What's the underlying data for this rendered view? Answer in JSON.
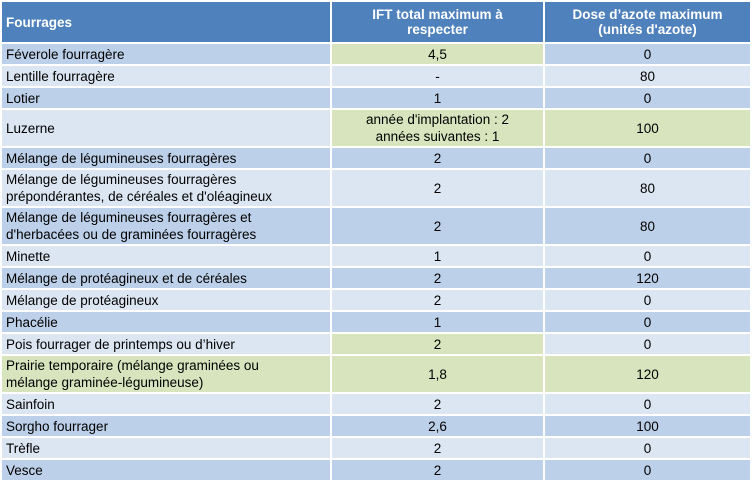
{
  "header": {
    "col1": "Fourrages",
    "col2_line1": "IFT total maximum  à",
    "col2_line2": "respecter",
    "col3_line1": "Dose d’azote maximum",
    "col3_line2": "(unités d'azote)"
  },
  "colors": {
    "header_bg": "#4f81bd",
    "row_dark": "#bdd0e9",
    "row_light": "#dce6f2",
    "highlight_green": "#d7e4bd"
  },
  "rows": [
    {
      "name": "Féverole fourragère",
      "ift": "4,5",
      "azote": "0"
    },
    {
      "name": "Lentille fourragère",
      "ift": "-",
      "azote": "80"
    },
    {
      "name": "Lotier",
      "ift": "1",
      "azote": "0"
    },
    {
      "name": "Luzerne",
      "ift_line1": "année d'implantation : 2",
      "ift_line2": "années suivantes : 1",
      "azote": "100"
    },
    {
      "name": "Mélange de légumineuses fourragères",
      "ift": "2",
      "azote": "0"
    },
    {
      "name_line1": "Mélange de légumineuses fourragères",
      "name_line2": "prépondérantes, de céréales et d'oléagineux",
      "ift": "2",
      "azote": "80"
    },
    {
      "name_line1": "Mélange de légumineuses fourragères et",
      "name_line2": "d'herbacées ou de graminées fourragères",
      "ift": "2",
      "azote": "80"
    },
    {
      "name": "Minette",
      "ift": "1",
      "azote": "0"
    },
    {
      "name": "Mélange de protéagineux et de céréales",
      "ift": "2",
      "azote": "120"
    },
    {
      "name": "Mélange de protéagineux",
      "ift": "2",
      "azote": "0"
    },
    {
      "name": "Phacélie",
      "ift": "1",
      "azote": "0"
    },
    {
      "name": "Pois fourrager de printemps ou d’hiver",
      "ift": "2",
      "azote": "0"
    },
    {
      "name_line1": "Prairie temporaire (mélange graminées ou",
      "name_line2": "mélange graminée-légumineuse)",
      "ift": "1,8",
      "azote": "120"
    },
    {
      "name": "Sainfoin",
      "ift": "2",
      "azote": "0"
    },
    {
      "name": "Sorgho fourrager",
      "ift": "2,6",
      "azote": "100"
    },
    {
      "name": "Trèfle",
      "ift": "2",
      "azote": "0"
    },
    {
      "name": "Vesce",
      "ift": "2",
      "azote": "0"
    }
  ]
}
